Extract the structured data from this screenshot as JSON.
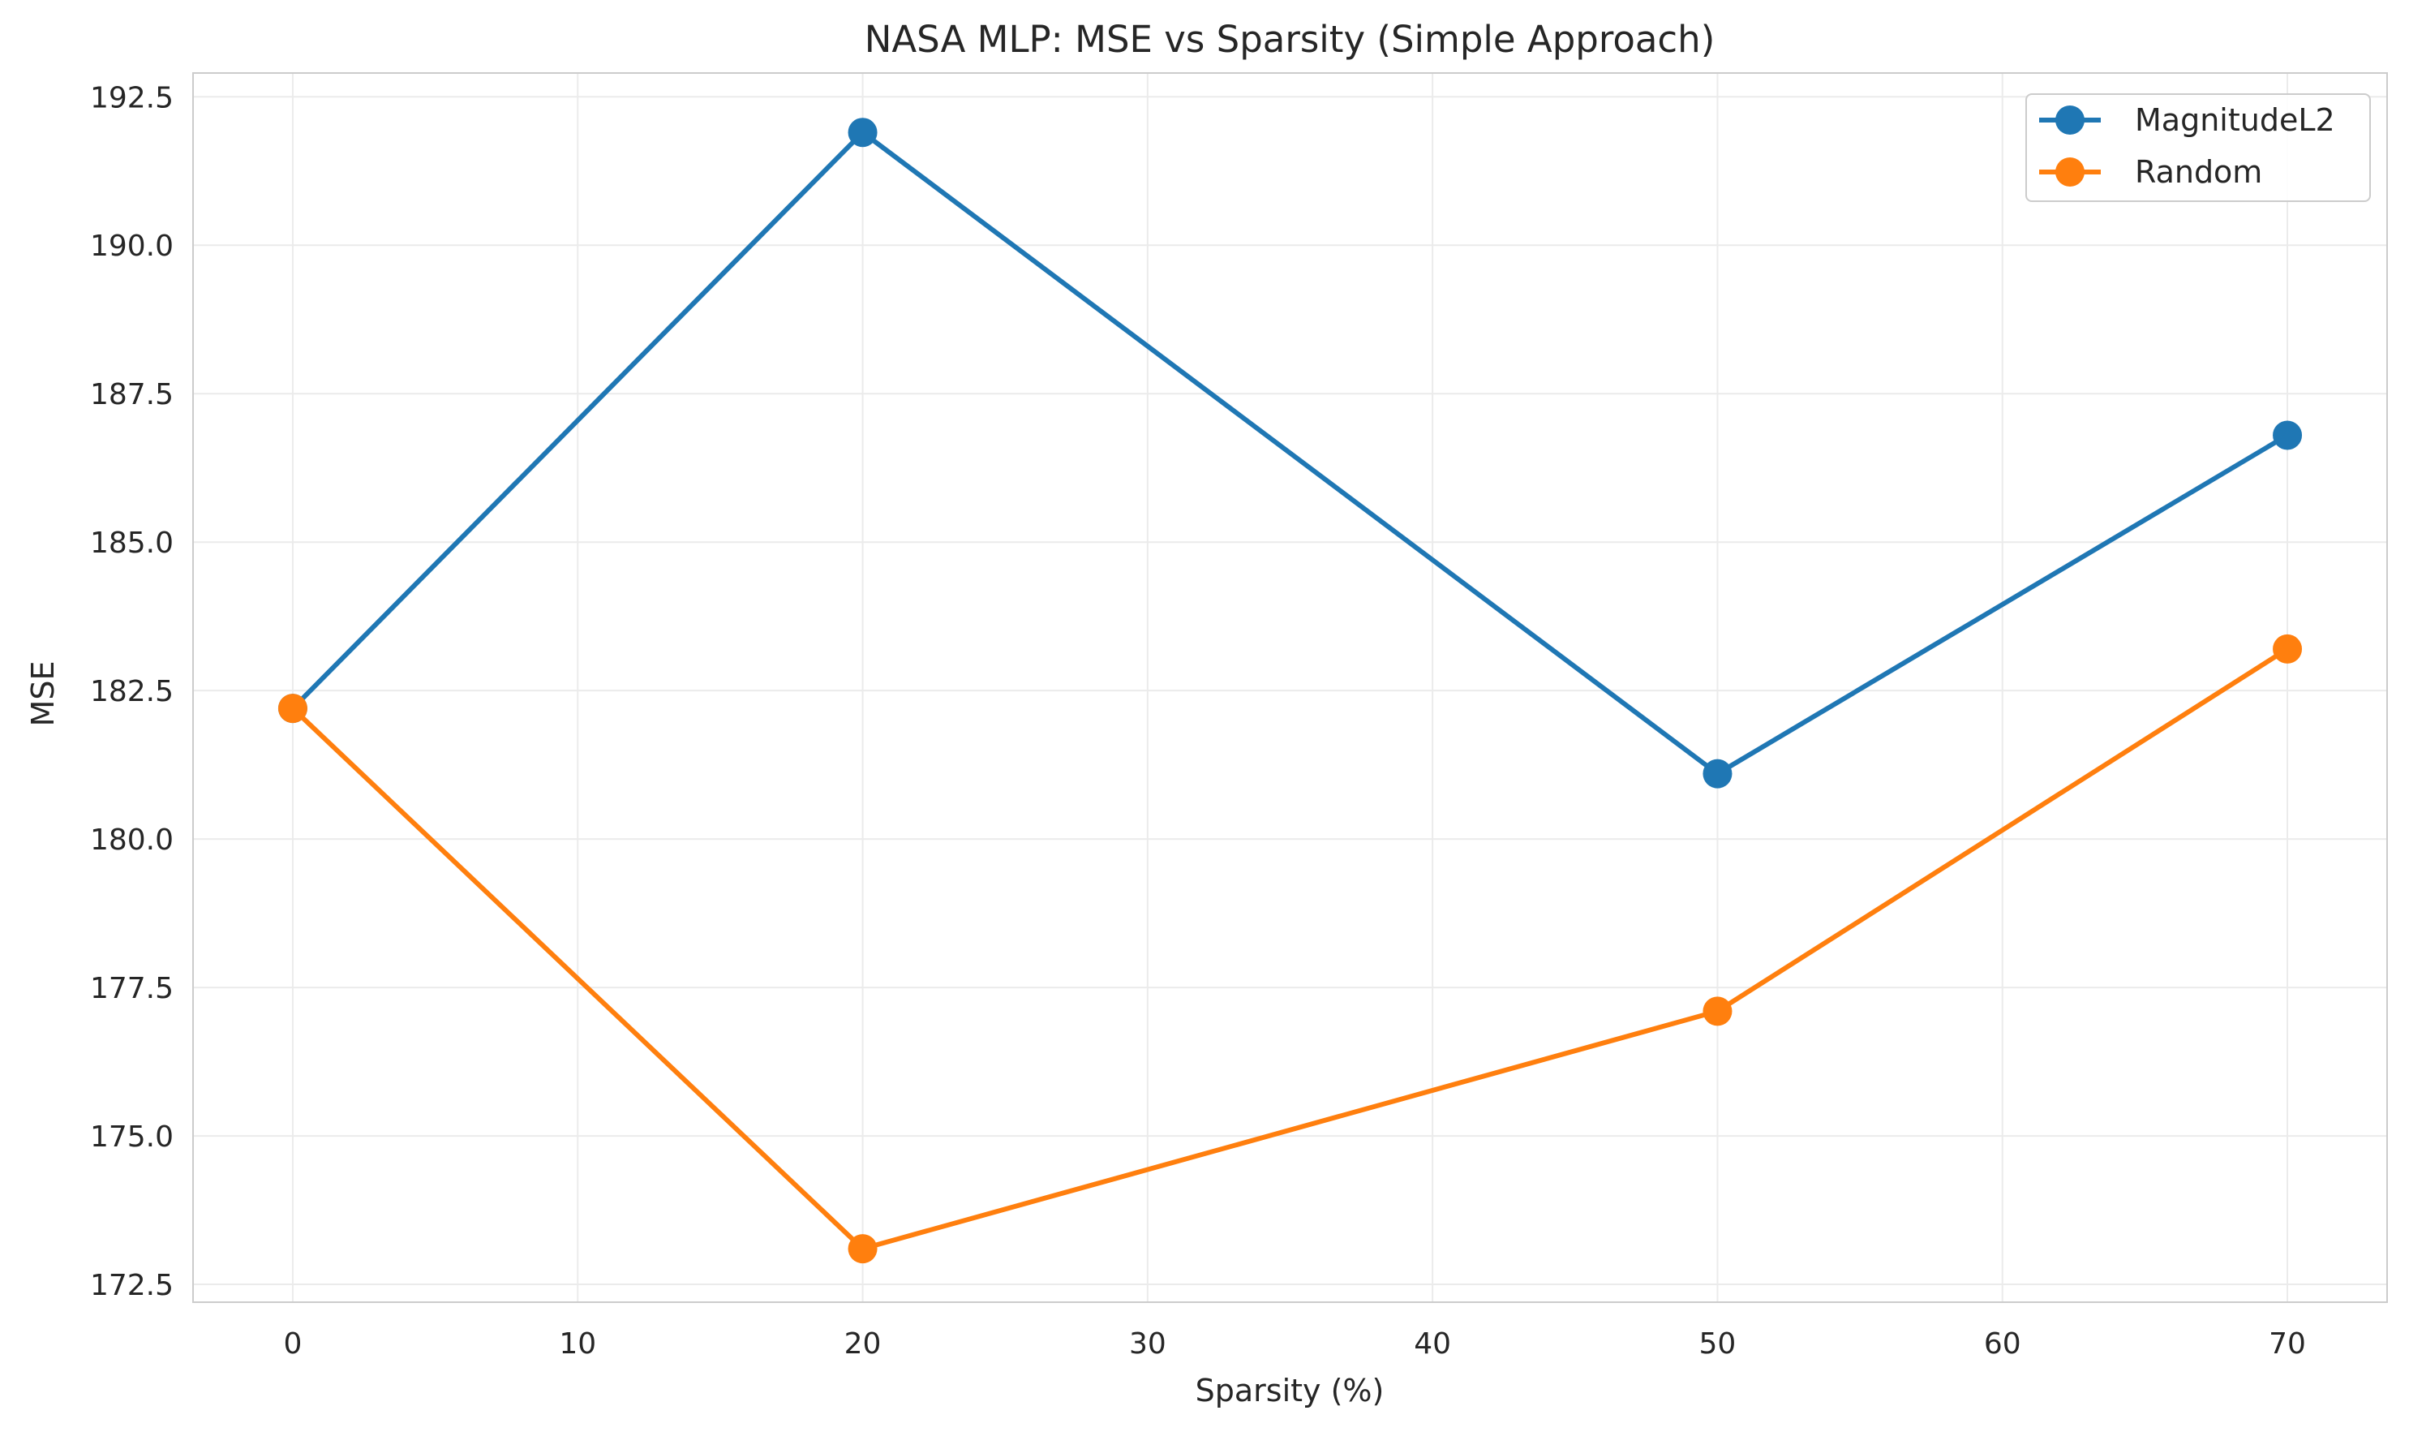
{
  "chart_data": {
    "type": "line",
    "title": "NASA MLP: MSE vs Sparsity (Simple Approach)",
    "xlabel": "Sparsity (%)",
    "ylabel": "MSE",
    "x": [
      0,
      20,
      50,
      70
    ],
    "xlim": [
      -3.5,
      73.5
    ],
    "ylim": [
      172.2,
      192.9
    ],
    "xticks": [
      0,
      10,
      20,
      30,
      40,
      50,
      60,
      70
    ],
    "xtick_labels": [
      "0",
      "10",
      "20",
      "30",
      "40",
      "50",
      "60",
      "70"
    ],
    "yticks": [
      172.5,
      175.0,
      177.5,
      180.0,
      182.5,
      185.0,
      187.5,
      190.0,
      192.5
    ],
    "ytick_labels": [
      "172.5",
      "175.0",
      "177.5",
      "180.0",
      "182.5",
      "185.0",
      "187.5",
      "190.0",
      "192.5"
    ],
    "grid": true,
    "legend_position": "top-right",
    "series": [
      {
        "name": "MagnitudeL2",
        "color": "#1f77b4",
        "marker": "circle",
        "values": [
          182.2,
          191.9,
          181.1,
          186.8
        ]
      },
      {
        "name": "Random",
        "color": "#ff7f0e",
        "marker": "circle",
        "values": [
          182.2,
          173.1,
          177.1,
          183.2
        ]
      }
    ]
  }
}
